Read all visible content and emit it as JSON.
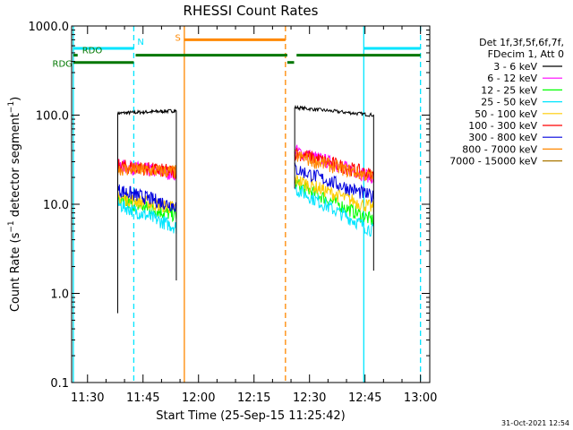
{
  "chart_data": {
    "type": "line",
    "title": "RHESSI Count Rates",
    "xlabel": "Start Time (25-Sep-15 11:25:42)",
    "ylabel_parts": [
      "Count Rate (s",
      "−1",
      " detector segment",
      "−1",
      ")"
    ],
    "yscale": "log",
    "ylim": [
      0.1,
      1000
    ],
    "xlim": [
      "11:25:42",
      "13:02:30"
    ],
    "x_ticks": [
      "11:30",
      "11:45",
      "12:00",
      "12:15",
      "12:30",
      "12:45",
      "13:00"
    ],
    "y_ticks": [
      {
        "label": "0.1",
        "value": 0.1
      },
      {
        "label": "1.0",
        "value": 1
      },
      {
        "label": "10.0",
        "value": 10
      },
      {
        "label": "100.0",
        "value": 100
      },
      {
        "label": "1000.0",
        "value": 1000
      }
    ],
    "legend_header": [
      "Det 1f,3f,5f,6f,7f,",
      "FDecim 1, Att 0"
    ],
    "legend_position": "right",
    "series": [
      {
        "name": "3 - 6 keV",
        "color": "#000000",
        "seg1": [
          105,
          112
        ],
        "seg2": [
          122,
          100
        ]
      },
      {
        "name": "6 - 12 keV",
        "color": "#ff00ff",
        "seg1": [
          27,
          22
        ],
        "seg2": [
          40,
          20
        ]
      },
      {
        "name": "12 - 25 keV",
        "color": "#00ff00",
        "seg1": [
          11,
          7.5
        ],
        "seg2": [
          17,
          6.5
        ]
      },
      {
        "name": "25 - 50 keV",
        "color": "#00e5ff",
        "seg1": [
          10,
          5.5
        ],
        "seg2": [
          15,
          5
        ]
      },
      {
        "name": "50 - 100 keV",
        "color": "#ffcc00",
        "seg1": [
          12,
          9
        ],
        "seg2": [
          19,
          9
        ]
      },
      {
        "name": "100 - 300 keV",
        "color": "#ff0000",
        "seg1": [
          27,
          23
        ],
        "seg2": [
          38,
          21
        ]
      },
      {
        "name": "300 - 800 keV",
        "color": "#0000dd",
        "seg1": [
          14.5,
          9.5
        ],
        "seg2": [
          25,
          12
        ]
      },
      {
        "name": "800 - 7000 keV",
        "color": "#ff8800",
        "seg1": [
          25,
          23
        ],
        "seg2": [
          35,
          20
        ]
      },
      {
        "name": "7000 - 15000 keV",
        "color": "#aa7700",
        "seg1": [],
        "seg2": []
      }
    ],
    "data_segments": [
      {
        "start": "11:38:10",
        "end": "11:54:00"
      },
      {
        "start": "12:26:00",
        "end": "12:47:20"
      }
    ],
    "vertical_markers": [
      {
        "time": "11:26:10",
        "color": "#00e5ff",
        "style": "solid"
      },
      {
        "time": "11:42:30",
        "color": "#00e5ff",
        "style": "dashed"
      },
      {
        "time": "11:56:10",
        "color": "#ff8800",
        "style": "solid"
      },
      {
        "time": "12:23:30",
        "color": "#ff8800",
        "style": "dashed"
      },
      {
        "time": "12:44:40",
        "color": "#00e5ff",
        "style": "solid"
      },
      {
        "time": "13:00:00",
        "color": "#00e5ff",
        "style": "dashed"
      }
    ],
    "flag_bars": [
      {
        "label": "N",
        "color": "#00e5ff",
        "level": 560,
        "spans": [
          [
            "11:26:10",
            "11:42:30"
          ],
          [
            "12:44:40",
            "13:00:00"
          ]
        ]
      },
      {
        "label": "S",
        "color": "#ff8800",
        "level": 700,
        "spans": [
          [
            "11:56:10",
            "12:23:30"
          ]
        ]
      },
      {
        "label": "RDO",
        "color": "#007700",
        "level": 470,
        "spans": [
          [
            "11:26:10",
            "11:27:20"
          ],
          [
            "11:43:00",
            "12:24:00"
          ],
          [
            "12:26:30",
            "13:00:00"
          ]
        ]
      },
      {
        "label": "RDG",
        "color": "#007700",
        "level": 390,
        "spans": [
          [
            "11:26:10",
            "11:42:30"
          ],
          [
            "12:24:00",
            "12:25:50"
          ]
        ]
      }
    ],
    "footer": "31-Oct-2021 12:54"
  }
}
